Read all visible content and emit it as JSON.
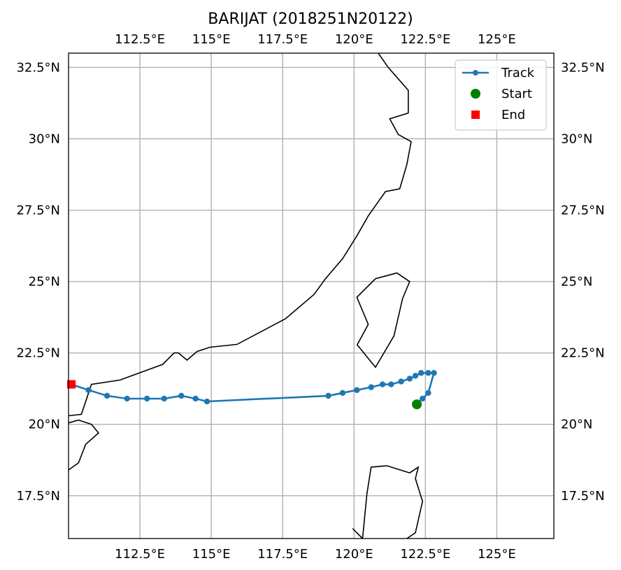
{
  "chart_data": {
    "type": "map-track",
    "title": "BARIJAT (2018251N20122)",
    "xlim": [
      110.0,
      127.0
    ],
    "ylim": [
      16.0,
      33.0
    ],
    "x_ticks": [
      {
        "value": 112.5,
        "label": "112.5°E"
      },
      {
        "value": 115.0,
        "label": "115°E"
      },
      {
        "value": 117.5,
        "label": "117.5°E"
      },
      {
        "value": 120.0,
        "label": "120°E"
      },
      {
        "value": 122.5,
        "label": "122.5°E"
      },
      {
        "value": 125.0,
        "label": "125°E"
      }
    ],
    "y_ticks": [
      {
        "value": 17.5,
        "label": "17.5°N"
      },
      {
        "value": 20.0,
        "label": "20°N"
      },
      {
        "value": 22.5,
        "label": "22.5°N"
      },
      {
        "value": 25.0,
        "label": "25°N"
      },
      {
        "value": 27.5,
        "label": "27.5°N"
      },
      {
        "value": 30.0,
        "label": "30°N"
      },
      {
        "value": 32.5,
        "label": "32.5°N"
      }
    ],
    "grid": true,
    "legend": {
      "placement": "top-right",
      "entries": [
        {
          "label": "Track",
          "marker": "line-dot",
          "color": "#1f77b4"
        },
        {
          "label": "Start",
          "marker": "circle",
          "color": "#008000"
        },
        {
          "label": "End",
          "marker": "square",
          "color": "#ff0000"
        }
      ]
    },
    "track": {
      "name": "Track",
      "color": "#1f77b4",
      "lon": [
        122.2,
        122.4,
        122.6,
        122.8,
        122.6,
        122.35,
        122.15,
        121.95,
        121.65,
        121.3,
        121.0,
        120.6,
        120.1,
        119.6,
        119.1,
        114.85,
        114.45,
        113.95,
        113.35,
        112.75,
        112.05,
        111.35,
        110.7,
        110.1
      ],
      "lat": [
        20.7,
        20.9,
        21.1,
        21.8,
        21.8,
        21.8,
        21.7,
        21.6,
        21.5,
        21.4,
        21.4,
        21.3,
        21.2,
        21.1,
        21.0,
        20.8,
        20.9,
        21.0,
        20.9,
        20.9,
        20.9,
        21.0,
        21.2,
        21.4
      ]
    },
    "start": {
      "lon": 122.2,
      "lat": 20.7,
      "color": "#008000"
    },
    "end": {
      "lon": 110.1,
      "lat": 21.4,
      "color": "#ff0000"
    },
    "coastlines": [
      [
        [
          110.0,
          20.3
        ],
        [
          110.45,
          20.35
        ],
        [
          110.8,
          21.4
        ],
        [
          111.8,
          21.55
        ],
        [
          113.3,
          22.1
        ],
        [
          113.7,
          22.5
        ],
        [
          113.85,
          22.5
        ],
        [
          114.15,
          22.25
        ],
        [
          114.5,
          22.55
        ],
        [
          114.95,
          22.7
        ],
        [
          115.9,
          22.8
        ],
        [
          117.6,
          23.7
        ],
        [
          118.6,
          24.55
        ],
        [
          119.0,
          25.1
        ],
        [
          119.6,
          25.8
        ],
        [
          120.1,
          26.6
        ],
        [
          120.5,
          27.3
        ],
        [
          121.1,
          28.15
        ],
        [
          121.6,
          28.25
        ],
        [
          121.85,
          29.1
        ],
        [
          122.0,
          29.9
        ],
        [
          121.55,
          30.15
        ],
        [
          121.25,
          30.7
        ],
        [
          121.9,
          30.9
        ],
        [
          121.9,
          31.7
        ],
        [
          121.2,
          32.5
        ],
        [
          120.85,
          33.0
        ]
      ],
      [
        [
          120.12,
          22.8
        ],
        [
          120.5,
          23.5
        ],
        [
          120.1,
          24.45
        ],
        [
          120.75,
          25.1
        ],
        [
          121.5,
          25.3
        ],
        [
          121.95,
          25.0
        ],
        [
          121.7,
          24.4
        ],
        [
          121.4,
          23.1
        ],
        [
          120.75,
          22.0
        ],
        [
          120.1,
          22.8
        ]
      ],
      [
        [
          110.0,
          20.05
        ],
        [
          110.35,
          20.15
        ],
        [
          110.8,
          20.0
        ],
        [
          111.05,
          19.7
        ],
        [
          110.6,
          19.3
        ],
        [
          110.35,
          18.65
        ],
        [
          110.0,
          18.4
        ]
      ],
      [
        [
          119.95,
          16.35
        ],
        [
          120.3,
          16.0
        ]
      ],
      [
        [
          120.3,
          16.0
        ],
        [
          120.45,
          17.55
        ],
        [
          120.6,
          18.5
        ],
        [
          121.15,
          18.55
        ],
        [
          121.95,
          18.3
        ],
        [
          122.25,
          18.5
        ],
        [
          122.15,
          18.1
        ],
        [
          122.4,
          17.3
        ],
        [
          122.15,
          16.2
        ],
        [
          121.85,
          16.0
        ]
      ]
    ]
  }
}
